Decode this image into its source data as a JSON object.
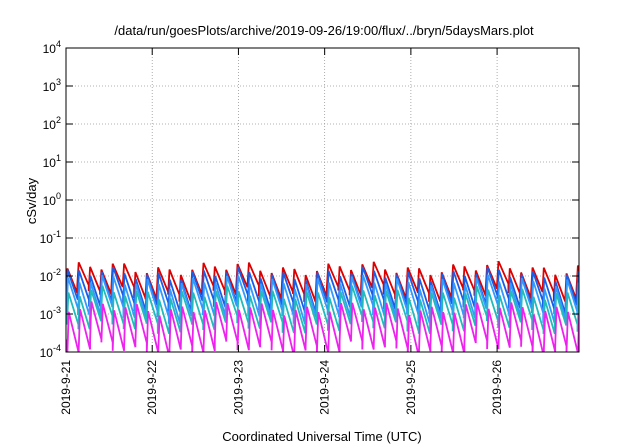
{
  "chart_data": {
    "type": "line",
    "title": "/data/run/goesPlots/archive/2019-09-26/19:00/flux/../bryn/5daysMars.plot",
    "xlabel": "Coordinated Universal Time (UTC)",
    "ylabel": "cSv/day",
    "yscale": "log",
    "ylim_exponent": [
      -4,
      4
    ],
    "y_ticks": [
      {
        "base": "10",
        "exp": "-4"
      },
      {
        "base": "10",
        "exp": "-3"
      },
      {
        "base": "10",
        "exp": "-2"
      },
      {
        "base": "10",
        "exp": "-1"
      },
      {
        "base": "10",
        "exp": "0"
      },
      {
        "base": "10",
        "exp": "1"
      },
      {
        "base": "10",
        "exp": "2"
      },
      {
        "base": "10",
        "exp": "3"
      },
      {
        "base": "10",
        "exp": "4"
      }
    ],
    "x_ticks": [
      "2019-9-21",
      "2019-9-22",
      "2019-9-23",
      "2019-9-24",
      "2019-9-25",
      "2019-9-26"
    ],
    "x_range_days": [
      0,
      5.95
    ],
    "grid": true,
    "series_colors": [
      "#dd0000",
      "#1a5ee6",
      "#3399ff",
      "#22bbbb",
      "#ee22ee"
    ],
    "sawtooth": {
      "teeth_per_day": 7.6,
      "series": [
        {
          "color": "#dd0000",
          "peak_log": -1.8,
          "trough_log": -2.45,
          "phase": 0.0
        },
        {
          "color": "#1a5ee6",
          "peak_log": -1.95,
          "trough_log": -2.75,
          "phase": 0.03
        },
        {
          "color": "#3399ff",
          "peak_log": -2.15,
          "trough_log": -3.0,
          "phase": 0.06
        },
        {
          "color": "#22bbbb",
          "peak_log": -2.45,
          "trough_log": -3.3,
          "phase": 0.09
        },
        {
          "color": "#ee22ee",
          "peak_log": -2.85,
          "trough_log": -3.9,
          "phase": 0.12
        }
      ]
    }
  }
}
